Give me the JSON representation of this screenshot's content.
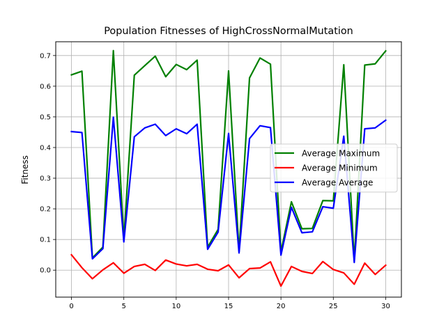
{
  "chart_data": {
    "type": "line",
    "title": "Population Fitnesses of HighCrossNormalMutation",
    "xlabel": "",
    "ylabel": "Fitness",
    "xlim": [
      -1.5,
      31.5
    ],
    "ylim": [
      -0.088,
      0.745
    ],
    "xticks": [
      0,
      5,
      10,
      15,
      20,
      25,
      30
    ],
    "yticks": [
      0.0,
      0.1,
      0.2,
      0.3,
      0.4,
      0.5,
      0.6,
      0.7
    ],
    "grid": true,
    "legend_position": "center-right",
    "x": [
      0,
      1,
      2,
      3,
      4,
      5,
      6,
      7,
      8,
      9,
      10,
      11,
      12,
      13,
      14,
      15,
      16,
      17,
      18,
      19,
      20,
      21,
      22,
      23,
      24,
      25,
      26,
      27,
      28,
      29,
      30
    ],
    "series": [
      {
        "name": "Average Maximum",
        "color": "#008000",
        "values": [
          0.637,
          0.649,
          0.04,
          0.075,
          0.716,
          0.1,
          0.636,
          0.667,
          0.698,
          0.631,
          0.671,
          0.654,
          0.685,
          0.075,
          0.133,
          0.65,
          0.06,
          0.627,
          0.692,
          0.672,
          0.06,
          0.223,
          0.135,
          0.136,
          0.227,
          0.226,
          0.67,
          0.03,
          0.669,
          0.673,
          0.715
        ]
      },
      {
        "name": "Average Minimum",
        "color": "#ff0000",
        "values": [
          0.05,
          0.008,
          -0.028,
          0.001,
          0.024,
          -0.01,
          0.012,
          0.019,
          -0.001,
          0.033,
          0.02,
          0.014,
          0.019,
          0.003,
          -0.002,
          0.017,
          -0.025,
          0.005,
          0.007,
          0.027,
          -0.052,
          0.012,
          -0.004,
          -0.011,
          0.028,
          0.002,
          -0.009,
          -0.046,
          0.023,
          -0.014,
          0.016
        ]
      },
      {
        "name": "Average Average",
        "color": "#0000ff",
        "values": [
          0.452,
          0.449,
          0.037,
          0.07,
          0.499,
          0.092,
          0.435,
          0.464,
          0.476,
          0.439,
          0.461,
          0.445,
          0.476,
          0.068,
          0.124,
          0.446,
          0.056,
          0.429,
          0.471,
          0.465,
          0.049,
          0.205,
          0.122,
          0.125,
          0.207,
          0.202,
          0.437,
          0.025,
          0.461,
          0.464,
          0.489
        ]
      }
    ]
  }
}
